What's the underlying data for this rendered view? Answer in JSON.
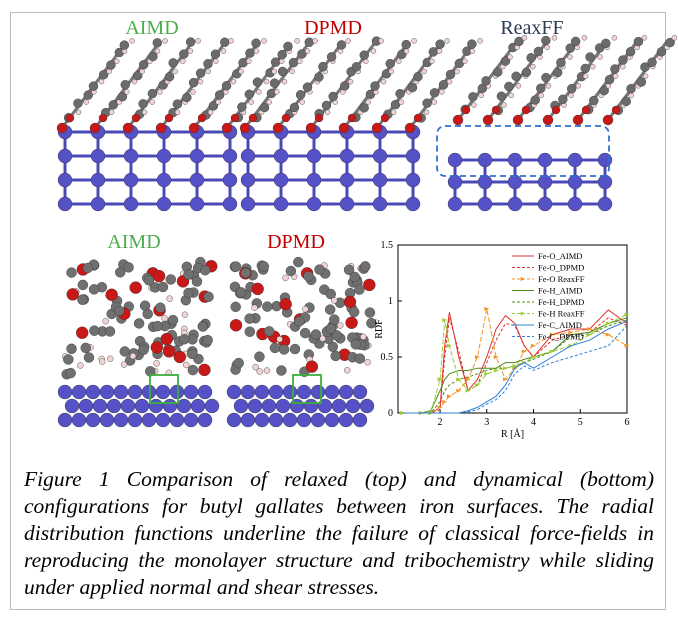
{
  "panels": [
    {
      "label": "AIMD",
      "color": "#4cae4c"
    },
    {
      "label": "DPMD",
      "color": "#c00000"
    },
    {
      "label": "ReaxFF",
      "color": "#2b3a55"
    },
    {
      "label": "AIMD",
      "color": "#4cae4c"
    },
    {
      "label": "DPMD",
      "color": "#c00000"
    }
  ],
  "caption": "Figure 1 Comparison of relaxed (top) and dynamical (bottom) configurations for butyl gallates between iron surfaces. The radial distribution functions underline the failure of classical force-fields in reproducing the monolayer structure and tribochemistry while sliding under applied normal and shear stresses.",
  "chart_data": {
    "type": "line",
    "x_label": "R [Å]",
    "y_label": "RDF",
    "x": [
      1.2,
      1.6,
      1.8,
      2.0,
      2.1,
      2.2,
      2.4,
      2.6,
      2.8,
      3.0,
      3.2,
      3.4,
      3.6,
      3.8,
      4.0,
      4.4,
      4.8,
      5.2,
      5.6,
      6.0
    ],
    "xlim": [
      1.1,
      6
    ],
    "xticks": [
      2,
      3,
      4,
      5,
      6
    ],
    "ylim": [
      0,
      1.5
    ],
    "yticks": [
      0,
      0.5,
      1,
      1.5
    ],
    "series": [
      {
        "name": "Fe-O_AIMD",
        "color": "#e0302a",
        "dashed": false,
        "marker": false,
        "values": [
          0,
          0,
          0,
          0.05,
          0.6,
          0.9,
          0.5,
          0.2,
          0.3,
          0.5,
          0.75,
          0.87,
          0.8,
          0.6,
          0.5,
          0.7,
          0.75,
          0.75,
          0.92,
          0.8
        ]
      },
      {
        "name": "Fe-O_DPMD",
        "color": "#e0302a",
        "dashed": true,
        "marker": false,
        "values": [
          0,
          0,
          0,
          0.03,
          0.5,
          0.85,
          0.55,
          0.2,
          0.25,
          0.45,
          0.65,
          0.8,
          0.78,
          0.6,
          0.5,
          0.65,
          0.7,
          0.72,
          0.85,
          0.78
        ]
      },
      {
        "name": "Fe-O ReaxFF",
        "color": "#f0962a",
        "dashed": true,
        "marker": true,
        "values": [
          0,
          0,
          0,
          0.05,
          0.1,
          0.15,
          0.2,
          0.3,
          0.5,
          0.93,
          0.5,
          0.3,
          0.4,
          0.55,
          0.6,
          0.7,
          0.72,
          0.75,
          0.7,
          0.6
        ]
      },
      {
        "name": "Fe-H_AIMD",
        "color": "#4c8a1e",
        "dashed": false,
        "marker": false,
        "values": [
          0,
          0,
          0.02,
          0.2,
          0.3,
          0.35,
          0.38,
          0.38,
          0.4,
          0.4,
          0.4,
          0.45,
          0.45,
          0.48,
          0.5,
          0.55,
          0.7,
          0.72,
          0.8,
          0.85
        ]
      },
      {
        "name": "Fe-H_DPMD",
        "color": "#4c8a1e",
        "dashed": true,
        "marker": false,
        "values": [
          0,
          0,
          0,
          0.1,
          0.2,
          0.25,
          0.3,
          0.32,
          0.35,
          0.38,
          0.4,
          0.4,
          0.42,
          0.45,
          0.48,
          0.55,
          0.68,
          0.7,
          0.78,
          0.83
        ]
      },
      {
        "name": "Fe-H ReaxFF",
        "color": "#9acd32",
        "dashed": true,
        "marker": true,
        "values": [
          0,
          0,
          0,
          0.3,
          0.83,
          0.6,
          0.3,
          0.2,
          0.25,
          0.35,
          0.38,
          0.4,
          0.42,
          0.45,
          0.5,
          0.55,
          0.6,
          0.7,
          0.8,
          0.88
        ]
      },
      {
        "name": "Fe-C_AIMD",
        "color": "#2e7fd6",
        "dashed": false,
        "marker": false,
        "values": [
          0,
          0,
          0,
          0,
          0,
          0,
          0,
          0.02,
          0.05,
          0.1,
          0.15,
          0.25,
          0.4,
          0.45,
          0.4,
          0.5,
          0.6,
          0.65,
          0.75,
          0.82
        ]
      },
      {
        "name": "Fe-C_DPMD",
        "color": "#2e7fd6",
        "dashed": true,
        "marker": false,
        "values": [
          0,
          0,
          0,
          0,
          0,
          0,
          0,
          0.01,
          0.03,
          0.08,
          0.12,
          0.2,
          0.35,
          0.42,
          0.38,
          0.45,
          0.5,
          0.55,
          0.6,
          0.78
        ]
      }
    ]
  }
}
